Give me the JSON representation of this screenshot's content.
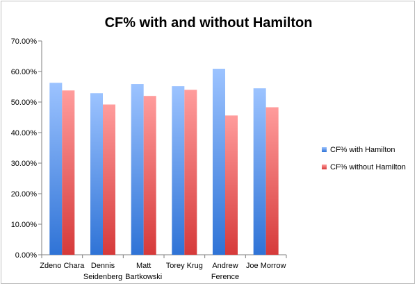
{
  "chart_data": {
    "type": "bar",
    "title": "CF% with and without Hamilton",
    "categories": [
      [
        "Zdeno Chara"
      ],
      [
        "Dennis",
        "Seidenberg"
      ],
      [
        "Matt",
        "Bartkowski"
      ],
      [
        "Torey Krug"
      ],
      [
        "Andrew",
        "Ference"
      ],
      [
        "Joe Morrow"
      ]
    ],
    "series": [
      {
        "name": "CF% with Hamilton",
        "values": [
          56.3,
          52.9,
          55.9,
          55.2,
          60.9,
          54.5
        ],
        "color_top": "#9cc3ff",
        "color_bottom": "#2f73d6"
      },
      {
        "name": "CF% without Hamilton",
        "values": [
          53.8,
          49.2,
          52.0,
          54.0,
          45.6,
          48.3
        ],
        "color_top": "#ff9c9c",
        "color_bottom": "#d63a3a"
      }
    ],
    "ylim": [
      0,
      70
    ],
    "yticks": [
      "0.00%",
      "10.00%",
      "20.00%",
      "30.00%",
      "40.00%",
      "50.00%",
      "60.00%",
      "70.00%"
    ],
    "ytick_values": [
      0,
      10,
      20,
      30,
      40,
      50,
      60,
      70
    ],
    "grid": false,
    "legend_position": "right"
  }
}
